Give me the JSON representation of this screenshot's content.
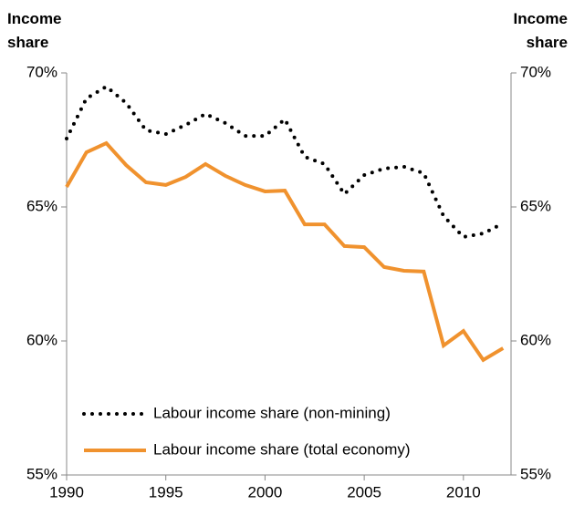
{
  "chart_data": {
    "type": "line",
    "ylabel": "Income share",
    "y2label": "Income share",
    "x": [
      1990,
      1991,
      1992,
      1993,
      1994,
      1995,
      1996,
      1997,
      1998,
      1999,
      2000,
      2001,
      2002,
      2003,
      2004,
      2005,
      2006,
      2007,
      2008,
      2009,
      2010,
      2011,
      2012
    ],
    "series": [
      {
        "name": "Labour income share (non-mining)",
        "color": "#000000",
        "style": "dotted",
        "values": [
          67.55,
          69.05,
          69.49,
          68.88,
          67.86,
          67.72,
          68.06,
          68.47,
          68.13,
          67.65,
          67.65,
          68.27,
          66.87,
          66.6,
          65.48,
          66.19,
          66.43,
          66.5,
          66.26,
          64.66,
          63.88,
          64.01,
          64.39
        ]
      },
      {
        "name": "Labour income share (total economy)",
        "color": "#f0922e",
        "style": "solid",
        "values": [
          65.75,
          67.04,
          67.38,
          66.56,
          65.92,
          65.82,
          66.12,
          66.6,
          66.16,
          65.82,
          65.58,
          65.61,
          64.35,
          64.35,
          63.54,
          63.5,
          62.76,
          62.62,
          62.59,
          59.83,
          60.37,
          59.29,
          59.73
        ]
      }
    ],
    "xlim": [
      1990,
      2012.4
    ],
    "xticks": [
      1990,
      1995,
      2000,
      2005,
      2010
    ],
    "ylim": [
      55,
      70
    ],
    "yticks": [
      {
        "value": 55,
        "label": "55%"
      },
      {
        "value": 60,
        "label": "60%"
      },
      {
        "value": 65,
        "label": "65%"
      },
      {
        "value": 70,
        "label": "70%"
      }
    ],
    "y2lim": [
      55,
      70
    ],
    "y2ticks": [
      {
        "value": 55,
        "label": "55%"
      },
      {
        "value": 60,
        "label": "60%"
      },
      {
        "value": 65,
        "label": "65%"
      },
      {
        "value": 70,
        "label": "70%"
      }
    ],
    "legend": "bottom-left"
  }
}
